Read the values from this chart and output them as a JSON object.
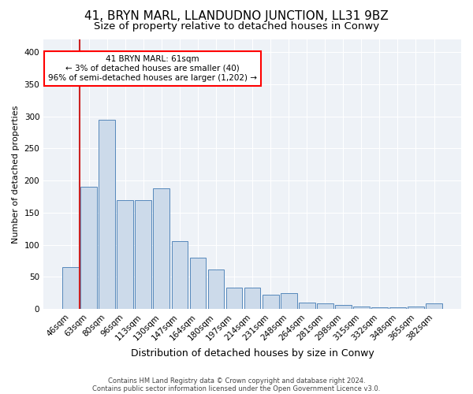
{
  "title_line1": "41, BRYN MARL, LLANDUDNO JUNCTION, LL31 9BZ",
  "title_line2": "Size of property relative to detached houses in Conwy",
  "xlabel": "Distribution of detached houses by size in Conwy",
  "ylabel": "Number of detached properties",
  "footnote1": "Contains HM Land Registry data © Crown copyright and database right 2024.",
  "footnote2": "Contains public sector information licensed under the Open Government Licence v3.0.",
  "bar_labels": [
    "46sqm",
    "63sqm",
    "80sqm",
    "96sqm",
    "113sqm",
    "130sqm",
    "147sqm",
    "164sqm",
    "180sqm",
    "197sqm",
    "214sqm",
    "231sqm",
    "248sqm",
    "264sqm",
    "281sqm",
    "298sqm",
    "315sqm",
    "332sqm",
    "348sqm",
    "365sqm",
    "382sqm"
  ],
  "bar_values": [
    65,
    190,
    295,
    170,
    170,
    188,
    105,
    80,
    61,
    33,
    33,
    22,
    25,
    10,
    9,
    6,
    4,
    3,
    2,
    4,
    8
  ],
  "bar_color": "#ccdaea",
  "bar_edge_color": "#5588bb",
  "vline_color": "#cc2222",
  "vline_x_idx": 0.5,
  "annotation_text": "41 BRYN MARL: 61sqm\n← 3% of detached houses are smaller (40)\n96% of semi-detached houses are larger (1,202) →",
  "ylim": [
    0,
    420
  ],
  "yticks": [
    0,
    50,
    100,
    150,
    200,
    250,
    300,
    350,
    400
  ],
  "background_color": "#eef2f7",
  "grid_color": "#ffffff",
  "title1_fontsize": 11,
  "title2_fontsize": 9.5,
  "xlabel_fontsize": 9,
  "ylabel_fontsize": 8,
  "tick_fontsize": 7.5,
  "annot_fontsize": 7.5,
  "footnote_fontsize": 6
}
